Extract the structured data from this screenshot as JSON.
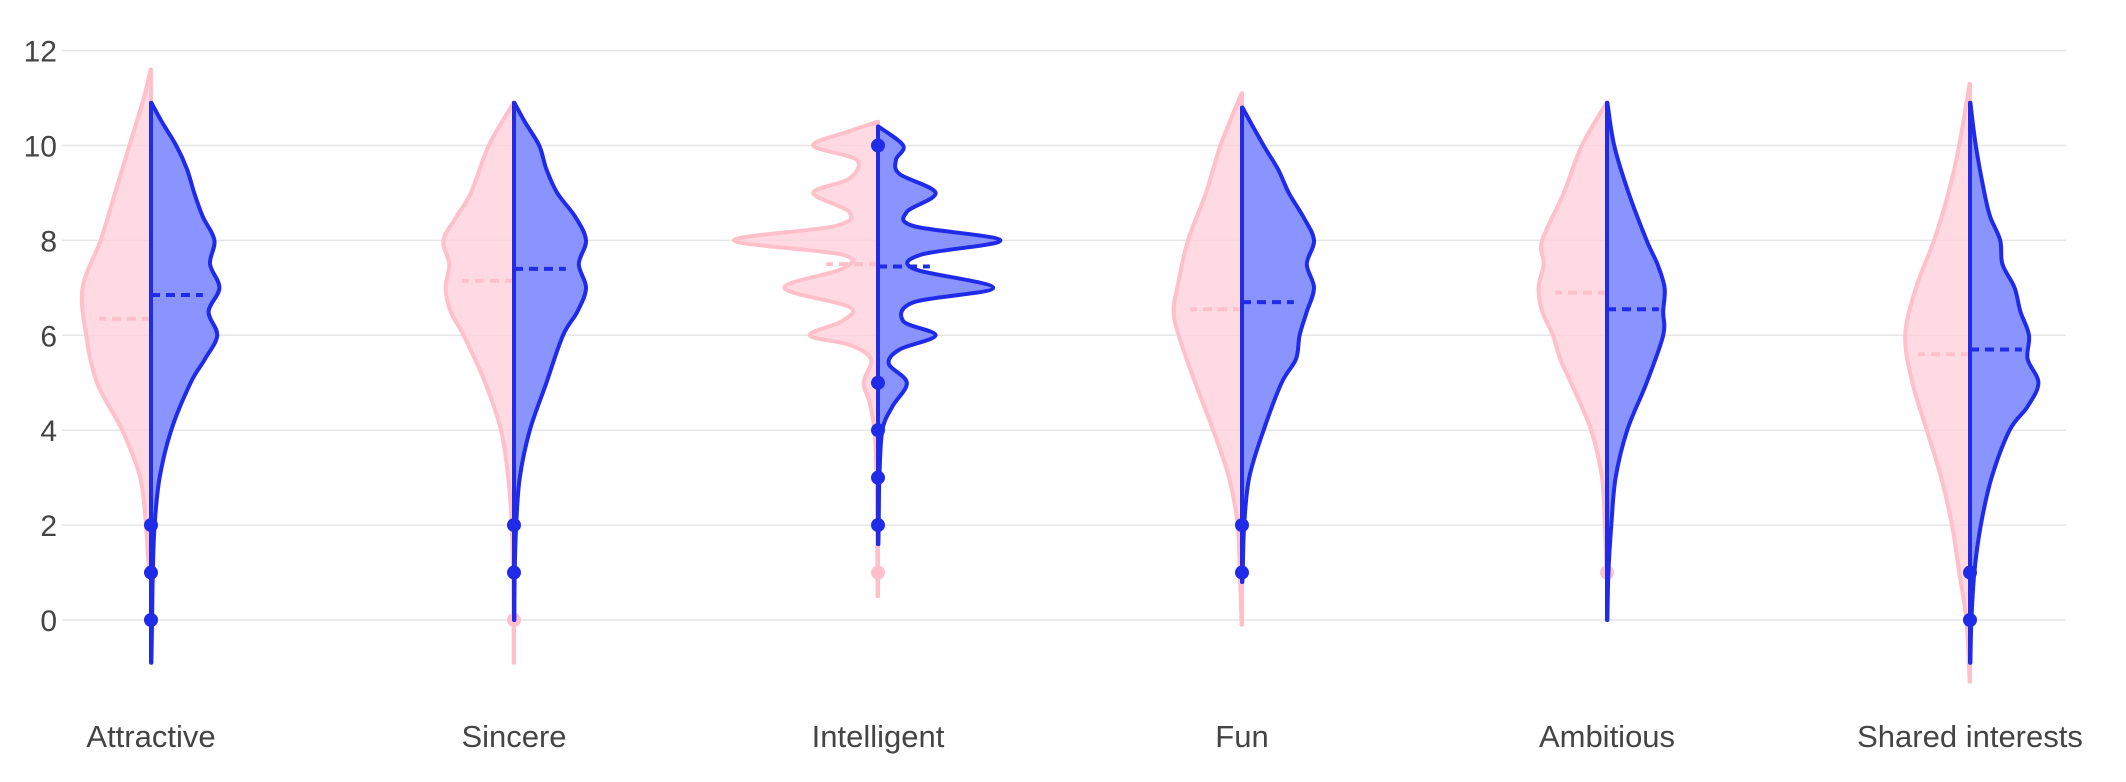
{
  "chart_data": {
    "type": "violin",
    "subtype": "split",
    "title": "",
    "xlabel": "",
    "ylabel": "",
    "categories": [
      "Attractive",
      "Sincere",
      "Intelligent",
      "Fun",
      "Ambitious",
      "Shared interests"
    ],
    "yticks": [
      0,
      2,
      4,
      6,
      8,
      10,
      12
    ],
    "ylim": [
      -1.5,
      12.5
    ],
    "grid": true,
    "legend": "none",
    "sides": [
      {
        "side": "negative",
        "fill": "#ffd1dc",
        "line": "#ffc0cb",
        "marker": "#ffc0cb"
      },
      {
        "side": "positive",
        "fill": "#8a94ff",
        "line": "#1f2be8",
        "marker": "#1f2be8"
      }
    ],
    "violins": [
      {
        "category": "Attractive",
        "negative": {
          "range": [
            0.9,
            11.6
          ],
          "mean": 6.35,
          "outliers": [],
          "profile": [
            [
              0.9,
              0.005
            ],
            [
              1.3,
              0.04
            ],
            [
              2.0,
              0.07
            ],
            [
              3.0,
              0.15
            ],
            [
              4.0,
              0.4
            ],
            [
              5.0,
              0.75
            ],
            [
              6.0,
              0.9
            ],
            [
              7.0,
              0.95
            ],
            [
              8.0,
              0.7
            ],
            [
              9.0,
              0.5
            ],
            [
              10.0,
              0.3
            ],
            [
              11.0,
              0.1
            ],
            [
              11.6,
              0.005
            ]
          ]
        },
        "positive": {
          "range": [
            -0.9,
            10.9
          ],
          "mean": 6.85,
          "outliers": [
            0,
            1,
            2
          ],
          "profile": [
            [
              -0.9,
              0.005
            ],
            [
              0,
              0.015
            ],
            [
              1.0,
              0.025
            ],
            [
              2.0,
              0.05
            ],
            [
              3.0,
              0.12
            ],
            [
              4.0,
              0.28
            ],
            [
              5.0,
              0.55
            ],
            [
              5.5,
              0.75
            ],
            [
              6.0,
              0.92
            ],
            [
              6.5,
              0.8
            ],
            [
              7.0,
              0.95
            ],
            [
              7.5,
              0.82
            ],
            [
              8.0,
              0.88
            ],
            [
              8.5,
              0.72
            ],
            [
              9.0,
              0.6
            ],
            [
              9.5,
              0.5
            ],
            [
              10.0,
              0.35
            ],
            [
              10.5,
              0.15
            ],
            [
              10.9,
              0.005
            ]
          ]
        }
      },
      {
        "category": "Sincere",
        "negative": {
          "range": [
            -0.9,
            10.9
          ],
          "mean": 7.15,
          "outliers": [
            0
          ],
          "profile": [
            [
              -0.9,
              0.005
            ],
            [
              0,
              0.005
            ],
            [
              1.0,
              0.015
            ],
            [
              2.0,
              0.03
            ],
            [
              3.0,
              0.08
            ],
            [
              4.0,
              0.18
            ],
            [
              5.0,
              0.4
            ],
            [
              6.0,
              0.7
            ],
            [
              6.5,
              0.88
            ],
            [
              7.0,
              0.95
            ],
            [
              7.5,
              0.9
            ],
            [
              8.0,
              0.98
            ],
            [
              8.5,
              0.8
            ],
            [
              9.0,
              0.6
            ],
            [
              10.0,
              0.35
            ],
            [
              10.9,
              0.005
            ]
          ]
        },
        "positive": {
          "range": [
            0,
            10.9
          ],
          "mean": 7.4,
          "outliers": [
            1,
            2
          ],
          "profile": [
            [
              0,
              0.005
            ],
            [
              1.0,
              0.01
            ],
            [
              2.0,
              0.03
            ],
            [
              3.0,
              0.08
            ],
            [
              4.0,
              0.22
            ],
            [
              5.0,
              0.45
            ],
            [
              6.0,
              0.68
            ],
            [
              6.5,
              0.88
            ],
            [
              7.0,
              1.0
            ],
            [
              7.5,
              0.9
            ],
            [
              8.0,
              1.0
            ],
            [
              8.5,
              0.85
            ],
            [
              9.0,
              0.6
            ],
            [
              9.5,
              0.45
            ],
            [
              10.0,
              0.35
            ],
            [
              10.5,
              0.15
            ],
            [
              10.9,
              0.005
            ]
          ]
        }
      },
      {
        "category": "Intelligent",
        "negative": {
          "range": [
            0.5,
            10.5
          ],
          "mean": 7.5,
          "outliers": [
            1
          ],
          "profile": [
            [
              0.5,
              0.005
            ],
            [
              1.5,
              0.01
            ],
            [
              3.0,
              0.02
            ],
            [
              4.0,
              0.05
            ],
            [
              4.6,
              0.12
            ],
            [
              5.0,
              0.2
            ],
            [
              5.5,
              0.1
            ],
            [
              5.8,
              0.4
            ],
            [
              6.0,
              0.95
            ],
            [
              6.3,
              0.5
            ],
            [
              6.6,
              0.4
            ],
            [
              7.0,
              1.3
            ],
            [
              7.4,
              0.5
            ],
            [
              7.7,
              0.5
            ],
            [
              8.0,
              2.0
            ],
            [
              8.3,
              0.6
            ],
            [
              8.6,
              0.4
            ],
            [
              9.0,
              0.9
            ],
            [
              9.3,
              0.4
            ],
            [
              9.7,
              0.3
            ],
            [
              10.0,
              0.9
            ],
            [
              10.3,
              0.4
            ],
            [
              10.5,
              0.005
            ]
          ]
        },
        "positive": {
          "range": [
            1.6,
            10.4
          ],
          "mean": 7.45,
          "outliers": [
            2,
            3,
            4,
            5,
            10
          ],
          "profile": [
            [
              1.6,
              0.005
            ],
            [
              2.0,
              0.01
            ],
            [
              3.0,
              0.02
            ],
            [
              4.0,
              0.06
            ],
            [
              4.5,
              0.2
            ],
            [
              5.0,
              0.4
            ],
            [
              5.4,
              0.15
            ],
            [
              5.7,
              0.3
            ],
            [
              6.0,
              0.8
            ],
            [
              6.3,
              0.35
            ],
            [
              6.7,
              0.5
            ],
            [
              7.0,
              1.6
            ],
            [
              7.4,
              0.5
            ],
            [
              7.7,
              0.6
            ],
            [
              8.0,
              1.7
            ],
            [
              8.3,
              0.5
            ],
            [
              8.6,
              0.4
            ],
            [
              9.0,
              0.8
            ],
            [
              9.4,
              0.3
            ],
            [
              9.7,
              0.25
            ],
            [
              10.0,
              0.35
            ],
            [
              10.4,
              0.005
            ]
          ]
        }
      },
      {
        "category": "Fun",
        "negative": {
          "range": [
            -0.1,
            11.1
          ],
          "mean": 6.55,
          "outliers": [],
          "profile": [
            [
              -0.1,
              0.005
            ],
            [
              1.0,
              0.03
            ],
            [
              2.0,
              0.06
            ],
            [
              3.0,
              0.18
            ],
            [
              4.0,
              0.4
            ],
            [
              5.0,
              0.65
            ],
            [
              6.0,
              0.88
            ],
            [
              6.5,
              0.95
            ],
            [
              7.0,
              0.9
            ],
            [
              8.0,
              0.75
            ],
            [
              9.0,
              0.5
            ],
            [
              10.0,
              0.3
            ],
            [
              11.1,
              0.005
            ]
          ]
        },
        "positive": {
          "range": [
            0.8,
            10.8
          ],
          "mean": 6.7,
          "outliers": [
            1,
            2
          ],
          "profile": [
            [
              0.8,
              0.005
            ],
            [
              1.0,
              0.01
            ],
            [
              2.0,
              0.03
            ],
            [
              3.0,
              0.1
            ],
            [
              4.0,
              0.3
            ],
            [
              5.0,
              0.55
            ],
            [
              5.5,
              0.75
            ],
            [
              6.0,
              0.8
            ],
            [
              6.5,
              0.9
            ],
            [
              7.0,
              1.0
            ],
            [
              7.5,
              0.9
            ],
            [
              8.0,
              1.0
            ],
            [
              8.5,
              0.85
            ],
            [
              9.0,
              0.65
            ],
            [
              9.5,
              0.5
            ],
            [
              10.0,
              0.3
            ],
            [
              10.8,
              0.005
            ]
          ]
        }
      },
      {
        "category": "Ambitious",
        "negative": {
          "range": [
            0.9,
            10.9
          ],
          "mean": 6.9,
          "outliers": [
            1
          ],
          "profile": [
            [
              0.9,
              0.005
            ],
            [
              2.0,
              0.03
            ],
            [
              3.0,
              0.07
            ],
            [
              4.0,
              0.22
            ],
            [
              5.0,
              0.5
            ],
            [
              5.5,
              0.65
            ],
            [
              6.0,
              0.75
            ],
            [
              6.5,
              0.9
            ],
            [
              7.0,
              0.95
            ],
            [
              7.5,
              0.88
            ],
            [
              8.0,
              0.9
            ],
            [
              9.0,
              0.6
            ],
            [
              10.0,
              0.35
            ],
            [
              10.9,
              0.005
            ]
          ]
        },
        "positive": {
          "range": [
            0,
            10.9
          ],
          "mean": 6.55,
          "outliers": [],
          "profile": [
            [
              0,
              0.005
            ],
            [
              1.0,
              0.02
            ],
            [
              2.0,
              0.06
            ],
            [
              3.0,
              0.12
            ],
            [
              4.0,
              0.28
            ],
            [
              5.0,
              0.55
            ],
            [
              6.0,
              0.78
            ],
            [
              6.5,
              0.78
            ],
            [
              7.0,
              0.8
            ],
            [
              7.5,
              0.7
            ],
            [
              8.0,
              0.55
            ],
            [
              9.0,
              0.3
            ],
            [
              10.0,
              0.1
            ],
            [
              10.9,
              0.005
            ]
          ]
        }
      },
      {
        "category": "Shared interests",
        "negative": {
          "range": [
            -1.3,
            11.3
          ],
          "mean": 5.6,
          "outliers": [],
          "profile": [
            [
              -1.3,
              0.005
            ],
            [
              0,
              0.05
            ],
            [
              1.0,
              0.15
            ],
            [
              2.0,
              0.25
            ],
            [
              3.0,
              0.4
            ],
            [
              4.0,
              0.6
            ],
            [
              5.0,
              0.8
            ],
            [
              6.0,
              0.9
            ],
            [
              7.0,
              0.75
            ],
            [
              8.0,
              0.5
            ],
            [
              9.0,
              0.3
            ],
            [
              10.0,
              0.15
            ],
            [
              11.3,
              0.005
            ]
          ]
        },
        "positive": {
          "range": [
            -0.9,
            10.9
          ],
          "mean": 5.7,
          "outliers": [
            0,
            1
          ],
          "profile": [
            [
              -0.9,
              0.005
            ],
            [
              0,
              0.02
            ],
            [
              1.0,
              0.06
            ],
            [
              2.0,
              0.15
            ],
            [
              3.0,
              0.3
            ],
            [
              4.0,
              0.55
            ],
            [
              4.5,
              0.8
            ],
            [
              5.0,
              0.95
            ],
            [
              5.5,
              0.8
            ],
            [
              6.0,
              0.82
            ],
            [
              6.5,
              0.7
            ],
            [
              7.0,
              0.62
            ],
            [
              7.5,
              0.45
            ],
            [
              8.0,
              0.42
            ],
            [
              8.5,
              0.28
            ],
            [
              9.0,
              0.2
            ],
            [
              10.0,
              0.08
            ],
            [
              10.9,
              0.005
            ]
          ]
        }
      }
    ]
  }
}
